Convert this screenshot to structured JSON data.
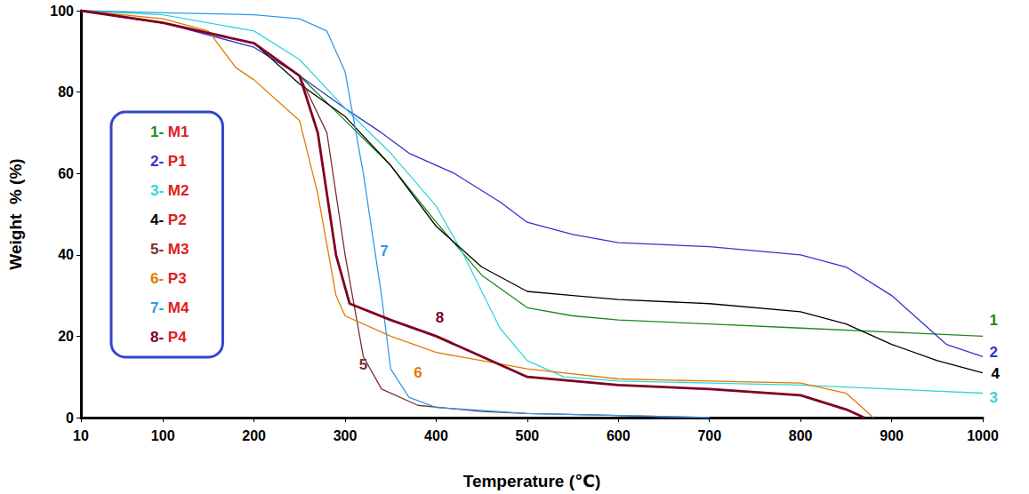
{
  "chart_data": {
    "type": "line",
    "x_label": "Temperature (℃)",
    "y_label": "Weight  % (%)",
    "xlim": [
      10,
      1000
    ],
    "xticks": [
      10,
      100,
      200,
      300,
      400,
      500,
      600,
      700,
      800,
      900,
      1000
    ],
    "ylim": [
      0,
      100
    ],
    "yticks": [
      0,
      20,
      40,
      60,
      80,
      100
    ],
    "grid": false,
    "legend": "left",
    "series": [
      {
        "name": "M1",
        "legend_label": "1- M1",
        "color": "#1a8a1a",
        "line_style": "solid",
        "x": [
          10,
          100,
          200,
          250,
          300,
          350,
          400,
          450,
          500,
          550,
          600,
          700,
          800,
          900,
          1000
        ],
        "values": [
          100,
          97,
          92,
          84,
          73,
          62,
          48,
          35,
          27,
          25,
          24,
          23,
          22,
          21,
          20
        ]
      },
      {
        "name": "P1",
        "legend_label": "2- P1",
        "color": "#3333cc",
        "line_style": "solid",
        "x": [
          10,
          100,
          200,
          250,
          300,
          340,
          370,
          420,
          470,
          500,
          550,
          600,
          700,
          800,
          850,
          900,
          930,
          960,
          1000
        ],
        "values": [
          100,
          97,
          91,
          84,
          76,
          70,
          65,
          60,
          53,
          48,
          45,
          43,
          42,
          40,
          37,
          30,
          24,
          18,
          15
        ]
      },
      {
        "name": "M2",
        "legend_label": "3- M2",
        "color": "#33d6d6",
        "line_style": "solid",
        "x": [
          10,
          100,
          200,
          250,
          300,
          350,
          400,
          430,
          470,
          500,
          540,
          600,
          700,
          800,
          900,
          1000
        ],
        "values": [
          100,
          99,
          95,
          88,
          76,
          65,
          52,
          40,
          22,
          14,
          10,
          9,
          8.5,
          8,
          7,
          6
        ]
      },
      {
        "name": "P2",
        "legend_label": "4- P2",
        "color": "#000000",
        "line_style": "solid",
        "x": [
          10,
          100,
          200,
          250,
          300,
          350,
          400,
          450,
          500,
          550,
          600,
          700,
          800,
          850,
          900,
          950,
          1000
        ],
        "values": [
          100,
          97,
          92,
          82,
          74,
          62,
          47,
          37,
          31,
          30,
          29,
          28,
          26,
          23,
          18,
          14,
          11
        ]
      },
      {
        "name": "M3",
        "legend_label": "5- M3",
        "color": "#7b3030",
        "line_style": "solid",
        "x": [
          10,
          100,
          200,
          250,
          280,
          300,
          320,
          340,
          380,
          450,
          500,
          600,
          700
        ],
        "values": [
          100,
          97,
          92,
          84,
          70,
          40,
          15,
          7,
          3,
          1.5,
          1,
          0.5,
          0
        ]
      },
      {
        "name": "P3",
        "legend_label": "6- P3",
        "color": "#e07b00",
        "line_style": "solid",
        "x": [
          10,
          100,
          150,
          180,
          200,
          250,
          270,
          290,
          300,
          350,
          400,
          450,
          500,
          600,
          700,
          800,
          850,
          880
        ],
        "values": [
          100,
          98,
          95,
          86,
          83,
          73,
          55,
          30,
          25,
          20,
          16,
          14,
          12,
          9.5,
          9,
          8.5,
          6,
          0
        ]
      },
      {
        "name": "M4",
        "legend_label": "7- M4",
        "color": "#3399e6",
        "line_style": "solid",
        "x": [
          10,
          100,
          200,
          250,
          280,
          300,
          320,
          340,
          350,
          370,
          400,
          500,
          600,
          700
        ],
        "values": [
          100,
          99.5,
          99,
          98,
          95,
          85,
          60,
          30,
          12,
          5,
          2.5,
          1,
          0.5,
          0
        ]
      },
      {
        "name": "P4",
        "legend_label": "8- P4",
        "color": "#800020",
        "line_style": "thick",
        "x": [
          10,
          100,
          200,
          250,
          270,
          290,
          305,
          350,
          400,
          450,
          500,
          600,
          700,
          800,
          850,
          870
        ],
        "values": [
          100,
          97,
          92,
          84,
          70,
          40,
          28,
          24,
          20,
          15,
          10,
          8,
          7,
          5.5,
          2,
          0
        ]
      }
    ],
    "annotations": [
      {
        "text": "1",
        "x": 1012,
        "y": 24,
        "color": "#1a8a1a"
      },
      {
        "text": "2",
        "x": 1012,
        "y": 16,
        "color": "#3333cc"
      },
      {
        "text": "4",
        "x": 1014,
        "y": 10.7,
        "color": "#000000"
      },
      {
        "text": "3",
        "x": 1012,
        "y": 5,
        "color": "#33d6d6"
      },
      {
        "text": "7",
        "x": 343,
        "y": 41,
        "color": "#3399e6"
      },
      {
        "text": "8",
        "x": 404,
        "y": 24.6,
        "color": "#800020"
      },
      {
        "text": "5",
        "x": 320,
        "y": 13,
        "color": "#7b3030"
      },
      {
        "text": "6",
        "x": 380,
        "y": 11,
        "color": "#e07b00"
      }
    ]
  }
}
